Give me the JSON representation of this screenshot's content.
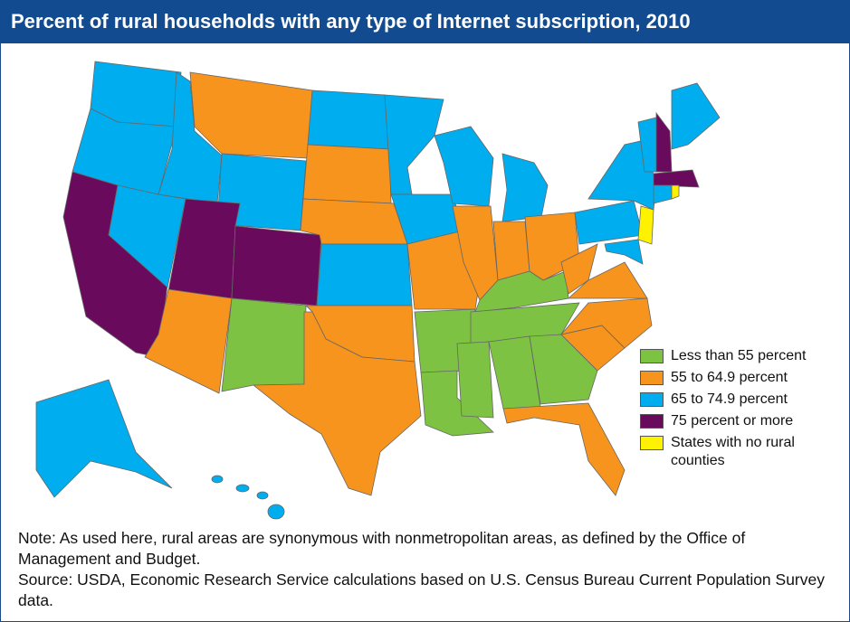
{
  "header": {
    "title": "Percent of rural households with any type of Internet subscription, 2010"
  },
  "legend": [
    {
      "label": "Less than 55 percent",
      "color": "#7dc242"
    },
    {
      "label": "55 to 64.9 percent",
      "color": "#f7941d"
    },
    {
      "label": "65 to 74.9 percent",
      "color": "#00aeef"
    },
    {
      "label": "75 percent or more",
      "color": "#6a0a5c"
    },
    {
      "label": "States with no rural counties",
      "color": "#fff200"
    }
  ],
  "footer": {
    "note": "Note: As used here, rural areas are synonymous with nonmetropolitan areas, as defined by the Office of Management and Budget.",
    "source": "Source: USDA, Economic Research Service calculations based on U.S. Census Bureau Current Population Survey data."
  }
}
